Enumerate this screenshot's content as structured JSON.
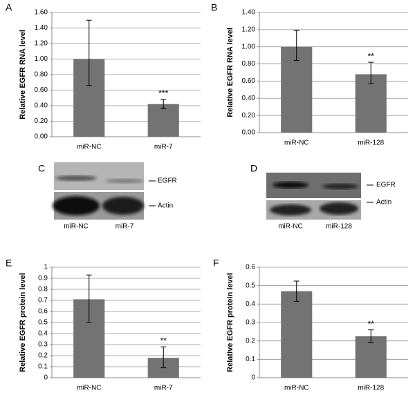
{
  "chart_data": [
    {
      "type": "bar",
      "panel": "A",
      "ylabel": "Relative EGFR RNA level",
      "categories": [
        "miR-NC",
        "miR-7"
      ],
      "values": [
        1.0,
        0.42
      ],
      "error_low": [
        0.34,
        0.06
      ],
      "error_high": [
        0.5,
        0.06
      ],
      "annotations": [
        null,
        "***"
      ],
      "color": "#737373",
      "ylim": [
        0,
        1.6
      ],
      "yticks": [
        {
          "value": 0,
          "label": "0.00"
        },
        {
          "value": 0.2,
          "label": "0.20"
        },
        {
          "value": 0.4,
          "label": "0.40"
        },
        {
          "value": 0.6,
          "label": "0.60"
        },
        {
          "value": 0.8,
          "label": "0.80"
        },
        {
          "value": 1,
          "label": "1.00"
        },
        {
          "value": 1.2,
          "label": "1.20"
        },
        {
          "value": 1.4,
          "label": "1.40"
        },
        {
          "value": 1.6,
          "label": "1.60"
        }
      ],
      "grid": true
    },
    {
      "type": "bar",
      "panel": "B",
      "ylabel": "Relative EGFR RNA level",
      "categories": [
        "miR-NC",
        "miR-128"
      ],
      "values": [
        1.0,
        0.68
      ],
      "error_low": [
        0.16,
        0.11
      ],
      "error_high": [
        0.19,
        0.14
      ],
      "annotations": [
        null,
        "**"
      ],
      "color": "#737373",
      "ylim": [
        0,
        1.4
      ],
      "yticks": [
        {
          "value": 0,
          "label": "0.00"
        },
        {
          "value": 0.2,
          "label": "0.20"
        },
        {
          "value": 0.4,
          "label": "0.40"
        },
        {
          "value": 0.6,
          "label": "0.60"
        },
        {
          "value": 0.8,
          "label": "0.80"
        },
        {
          "value": 1,
          "label": "1.00"
        },
        {
          "value": 1.2,
          "label": "1.20"
        },
        {
          "value": 1.4,
          "label": "1.40"
        }
      ],
      "grid": true
    },
    {
      "type": "bar",
      "panel": "E",
      "ylabel": "Relative EGFR protein level",
      "categories": [
        "miR-NC",
        "miR-7"
      ],
      "values": [
        0.71,
        0.18
      ],
      "error_low": [
        0.21,
        0.09
      ],
      "error_high": [
        0.22,
        0.1
      ],
      "annotations": [
        null,
        "**"
      ],
      "color": "#737373",
      "ylim": [
        0,
        1
      ],
      "yticks": [
        0,
        0.1,
        0.2,
        0.3,
        0.4,
        0.5,
        0.6,
        0.7,
        0.8,
        0.9,
        1
      ],
      "grid": true
    },
    {
      "type": "bar",
      "panel": "F",
      "ylabel": "Relative EGFR protein level",
      "categories": [
        "miR-NC",
        "miR-128"
      ],
      "values": [
        0.47,
        0.225
      ],
      "error_low": [
        0.055,
        0.035
      ],
      "error_high": [
        0.055,
        0.035
      ],
      "annotations": [
        null,
        "**"
      ],
      "color": "#737373",
      "ylim": [
        0,
        0.6
      ],
      "yticks": [
        0,
        0.1,
        0.2,
        0.3,
        0.4,
        0.5,
        0.6
      ],
      "grid": true
    }
  ],
  "blots": [
    {
      "panel": "C",
      "bands": [
        "EGFR",
        "Actin"
      ],
      "lanes": [
        "miR-NC",
        "miR-7"
      ]
    },
    {
      "panel": "D",
      "bands": [
        "EGFR",
        "Actin"
      ],
      "lanes": [
        "miR-NC",
        "miR-128"
      ]
    }
  ]
}
